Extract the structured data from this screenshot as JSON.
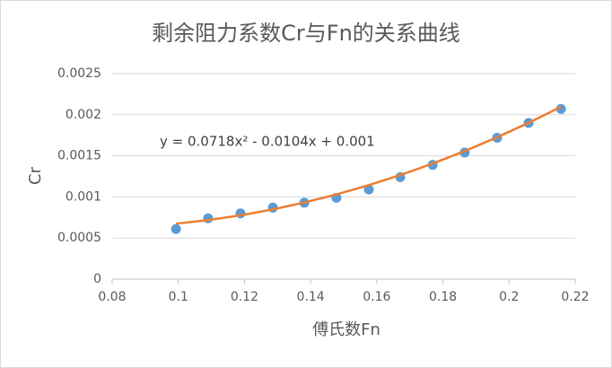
{
  "chart_data": {
    "type": "scatter",
    "title": "剩余阻力系数Cr与Fn的关系曲线",
    "x_label": "傅氏数Fn",
    "y_label": "Cr",
    "x": [
      0.0993,
      0.109,
      0.1188,
      0.1286,
      0.1381,
      0.1478,
      0.1576,
      0.1671,
      0.1769,
      0.1866,
      0.1964,
      0.2059,
      0.2157
    ],
    "series": [
      {
        "name": "Cr",
        "color": "#5b9bd5",
        "values": [
          0.00061,
          0.00074,
          0.0008,
          0.00087,
          0.00093,
          0.00099,
          0.00109,
          0.00124,
          0.00139,
          0.00154,
          0.00172,
          0.0019,
          0.00207
        ]
      }
    ],
    "trendline": {
      "label": "y = 0.0718x² - 0.0104x + 0.001",
      "coefficients": [
        0.0718,
        -0.0104,
        0.001
      ],
      "color": "#ed7d31"
    },
    "xlim": [
      0.08,
      0.22
    ],
    "xticks": [
      0.08,
      0.1,
      0.12,
      0.14,
      0.16,
      0.18,
      0.2,
      0.22
    ],
    "ylim": [
      0,
      0.0025
    ],
    "yticks": [
      0,
      0.0005,
      0.001,
      0.0015,
      0.002,
      0.0025
    ],
    "grid": true
  }
}
